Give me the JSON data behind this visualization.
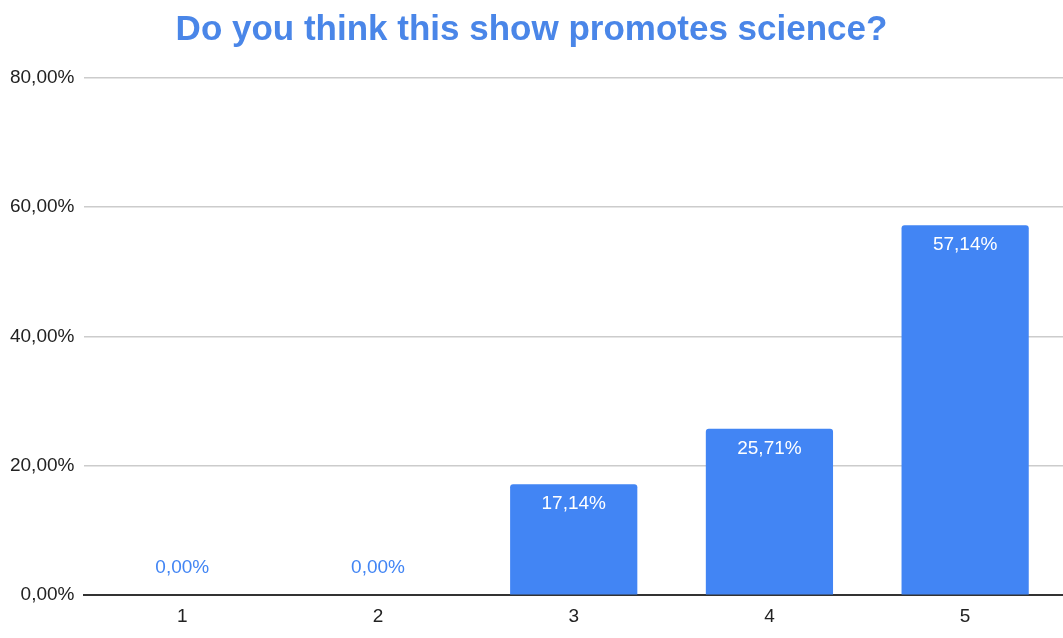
{
  "chart_data": {
    "type": "bar",
    "title": "Do you think this show promotes science?",
    "categories": [
      "1",
      "2",
      "3",
      "4",
      "5"
    ],
    "values": [
      0,
      0,
      17.14,
      25.71,
      57.14
    ],
    "value_labels": [
      "0,00%",
      "0,00%",
      "17,14%",
      "25,71%",
      "57,14%"
    ],
    "color": "#4285f4",
    "ylim": [
      0,
      80
    ],
    "yticks": [
      {
        "value": 0,
        "label": "0,00%"
      },
      {
        "value": 20,
        "label": "20,00%"
      },
      {
        "value": 40,
        "label": "40,00%"
      },
      {
        "value": 60,
        "label": "60,00%"
      },
      {
        "value": 80,
        "label": "80,00%"
      }
    ],
    "grid": "y",
    "legend": false
  }
}
